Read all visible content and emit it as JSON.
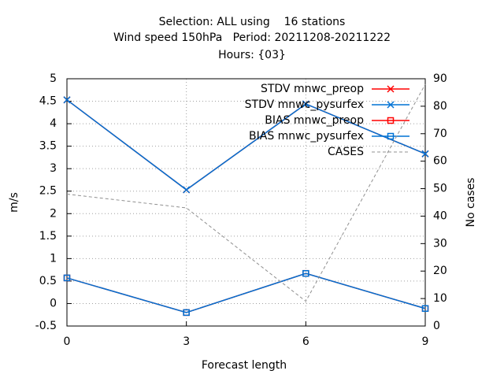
{
  "chart_data": {
    "type": "line",
    "title": [
      "Selection: ALL using    16 stations",
      "Wind speed 150hPa   Period: 20211208-20211222",
      "Hours: {03}"
    ],
    "x_label": "Forecast length",
    "y_label": "m/s",
    "y2_label": "No cases",
    "x": [
      0,
      3,
      6,
      9
    ],
    "xlim": [
      0,
      9
    ],
    "xticks": [
      0,
      3,
      6,
      9
    ],
    "ylim": [
      -0.5,
      5
    ],
    "yticks": [
      -0.5,
      0,
      0.5,
      1,
      1.5,
      2,
      2.5,
      3,
      3.5,
      4,
      4.5,
      5
    ],
    "y2lim": [
      0,
      90
    ],
    "y2ticks": [
      0,
      10,
      20,
      30,
      40,
      50,
      60,
      70,
      80,
      90
    ],
    "grid": true,
    "legend": "top-right",
    "series": [
      {
        "name": "STDV mnwc_preop",
        "color": "#ff0000",
        "marker": "x",
        "values": [
          4.53,
          2.53,
          4.44,
          3.33
        ]
      },
      {
        "name": "STDV mnwc_pysurfex",
        "color": "#0072d4",
        "marker": "x",
        "values": [
          4.53,
          2.53,
          4.44,
          3.33
        ]
      },
      {
        "name": "BIAS mnwc_preop",
        "color": "#ff0000",
        "marker": "square",
        "values": [
          0.57,
          -0.2,
          0.67,
          -0.11
        ]
      },
      {
        "name": "BIAS mnwc_pysurfex",
        "color": "#0072d4",
        "marker": "square",
        "values": [
          0.57,
          -0.2,
          0.67,
          -0.11
        ]
      },
      {
        "name": "CASES",
        "color": "#909090",
        "marker": "none",
        "dashed": true,
        "axis": "y2",
        "values": [
          48,
          43,
          9,
          88
        ]
      }
    ]
  }
}
